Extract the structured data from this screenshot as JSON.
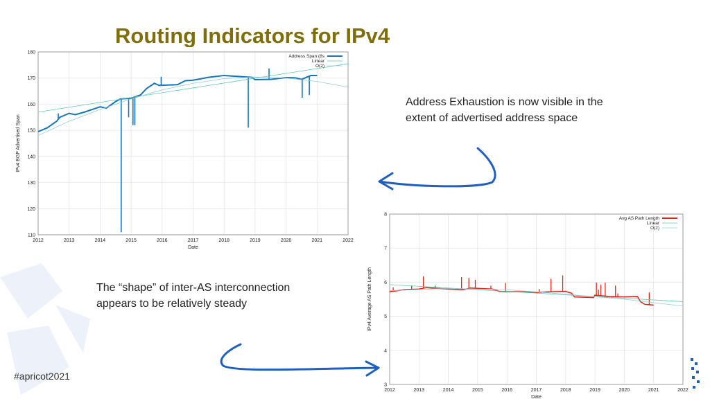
{
  "slide": {
    "title": "Routing Indicators for IPv4",
    "note1": "Address Exhaustion is now visible in the extent of advertised address space",
    "note2": "The “shape” of inter-AS interconnection appears to be relatively steady",
    "hashtag": "#apricot2021",
    "arrow_color": "#1f5fbf",
    "title_color": "#7f6f0c"
  },
  "chart_data": [
    {
      "type": "line",
      "xlabel": "Date",
      "ylabel": "IPv4 BGP Advertised Span",
      "xlim": [
        2012,
        2022
      ],
      "ylim": [
        110,
        180
      ],
      "xticks": [
        "2012",
        "2013",
        "2014",
        "2015",
        "2016",
        "2017",
        "2018",
        "2019",
        "2020",
        "2021",
        "2022"
      ],
      "yticks": [
        "110",
        "120",
        "130",
        "140",
        "150",
        "160",
        "170",
        "180"
      ],
      "grid": true,
      "legend": "top-right",
      "series": [
        {
          "name": "Address Span (8s",
          "color": "#1874b8",
          "width": 2,
          "points": [
            [
              2012,
              149.5
            ],
            [
              2012.3,
              151
            ],
            [
              2012.6,
              153.5
            ],
            [
              2012.7,
              155
            ],
            [
              2013,
              156.5
            ],
            [
              2013.2,
              156
            ],
            [
              2013.5,
              157
            ],
            [
              2014,
              159
            ],
            [
              2014.2,
              158.5
            ],
            [
              2014.5,
              161
            ],
            [
              2014.65,
              162
            ],
            [
              2015,
              162.3
            ],
            [
              2015.3,
              163.5
            ],
            [
              2015.5,
              166
            ],
            [
              2015.75,
              168
            ],
            [
              2015.9,
              167.2
            ],
            [
              2016.5,
              167.5
            ],
            [
              2016.75,
              169
            ],
            [
              2017,
              169.2
            ],
            [
              2017.5,
              170.3
            ],
            [
              2018,
              171
            ],
            [
              2018.5,
              170.6
            ],
            [
              2018.9,
              170.3
            ],
            [
              2019,
              169.4
            ],
            [
              2019.5,
              169.5
            ],
            [
              2020,
              170.2
            ],
            [
              2020.3,
              170.1
            ],
            [
              2020.5,
              169.5
            ],
            [
              2020.7,
              170.5
            ],
            [
              2020.8,
              171
            ],
            [
              2021,
              171
            ]
          ],
          "spikes": [
            [
              2012.65,
              156.5
            ],
            [
              2014.68,
              111
            ],
            [
              2014.92,
              155
            ],
            [
              2015.06,
              152
            ],
            [
              2015.12,
              152
            ],
            [
              2015.97,
              170.5
            ],
            [
              2018.78,
              151
            ],
            [
              2019.45,
              173.7
            ],
            [
              2020.52,
              162.5
            ],
            [
              2020.75,
              163.5
            ]
          ]
        },
        {
          "name": "Linear",
          "color": "#5cc9a8",
          "width": 0.8,
          "points": [
            [
              2012,
              157
            ],
            [
              2022,
              175.5
            ]
          ]
        },
        {
          "name": "O(2)",
          "color": "#8fcbe0",
          "width": 0.8,
          "points": [
            [
              2012,
              148
            ],
            [
              2013,
              153.5
            ],
            [
              2014,
              158
            ],
            [
              2015,
              162
            ],
            [
              2016,
              165.5
            ],
            [
              2017,
              168
            ],
            [
              2018,
              169.8
            ],
            [
              2019,
              170.4
            ],
            [
              2020,
              170
            ],
            [
              2021,
              168.7
            ],
            [
              2022,
              166.5
            ]
          ]
        }
      ]
    },
    {
      "type": "line",
      "xlabel": "Date",
      "ylabel": "IPv4 Average AS Path Length",
      "xlim": [
        2012,
        2022
      ],
      "ylim": [
        3,
        8
      ],
      "xticks": [
        "2012",
        "2013",
        "2014",
        "2015",
        "2016",
        "2017",
        "2018",
        "2019",
        "2020",
        "2021",
        "2022"
      ],
      "yticks": [
        "3",
        "4",
        "5",
        "6",
        "7",
        "8"
      ],
      "grid": true,
      "legend": "top-right",
      "series": [
        {
          "name": "Avg AS Path Length",
          "color": "#e02418",
          "width": 1.6,
          "points": [
            [
              2012,
              5.72
            ],
            [
              2012.5,
              5.78
            ],
            [
              2013,
              5.8
            ],
            [
              2013.25,
              5.84
            ],
            [
              2014,
              5.8
            ],
            [
              2014.5,
              5.78
            ],
            [
              2014.75,
              5.83
            ],
            [
              2015.5,
              5.8
            ],
            [
              2015.75,
              5.73
            ],
            [
              2016,
              5.72
            ],
            [
              2016.5,
              5.72
            ],
            [
              2017,
              5.7
            ],
            [
              2017.5,
              5.72
            ],
            [
              2018,
              5.73
            ],
            [
              2018.2,
              5.68
            ],
            [
              2018.3,
              5.57
            ],
            [
              2018.95,
              5.55
            ],
            [
              2019,
              5.62
            ],
            [
              2019.5,
              5.58
            ],
            [
              2020,
              5.57
            ],
            [
              2020.45,
              5.58
            ],
            [
              2020.55,
              5.43
            ],
            [
              2020.7,
              5.35
            ],
            [
              2021,
              5.33
            ]
          ],
          "spikes": [
            [
              2012.12,
              5.85
            ],
            [
              2012.75,
              5.9
            ],
            [
              2013.15,
              6.17
            ],
            [
              2013.55,
              5.9
            ],
            [
              2014.45,
              6.15
            ],
            [
              2014.7,
              6.12
            ],
            [
              2014.92,
              6.07
            ],
            [
              2015.45,
              5.9
            ],
            [
              2015.95,
              5.98
            ],
            [
              2017.1,
              5.8
            ],
            [
              2017.5,
              6.1
            ],
            [
              2017.9,
              6.2
            ],
            [
              2019.05,
              5.99
            ],
            [
              2019.12,
              5.78
            ],
            [
              2019.2,
              5.93
            ],
            [
              2019.35,
              5.99
            ],
            [
              2019.7,
              5.9
            ],
            [
              2019.78,
              5.67
            ],
            [
              2020.85,
              5.7
            ]
          ]
        },
        {
          "name": "Linear",
          "color": "#5cc9a8",
          "width": 0.8,
          "points": [
            [
              2012,
              5.93
            ],
            [
              2022,
              5.43
            ]
          ]
        },
        {
          "name": "O(2)",
          "color": "#8fcbe0",
          "width": 0.8,
          "points": [
            [
              2012,
              5.75
            ],
            [
              2014,
              5.82
            ],
            [
              2016,
              5.78
            ],
            [
              2018,
              5.65
            ],
            [
              2020,
              5.5
            ],
            [
              2022,
              5.3
            ]
          ]
        }
      ]
    }
  ]
}
